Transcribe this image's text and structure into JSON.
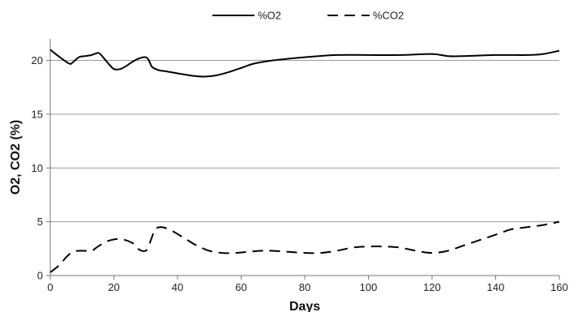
{
  "chart_data": {
    "type": "line",
    "title": "",
    "xlabel": "Days",
    "ylabel": "O2, CO2 (%)",
    "xlim": [
      0,
      160
    ],
    "ylim": [
      0,
      22
    ],
    "xticks": [
      0,
      20,
      40,
      60,
      80,
      100,
      120,
      140,
      160
    ],
    "yticks": [
      0,
      5,
      10,
      15,
      20
    ],
    "grid": "horizontal",
    "legend": "top-center",
    "series": [
      {
        "name": "%O2",
        "style": "solid",
        "color": "#000000",
        "x": [
          0,
          3,
          6,
          7,
          9,
          11,
          13,
          15,
          16,
          18,
          20,
          22,
          24,
          26,
          28,
          30,
          31,
          32,
          34,
          36,
          40,
          44,
          48,
          52,
          56,
          60,
          64,
          70,
          80,
          90,
          100,
          110,
          120,
          125,
          130,
          140,
          150,
          155,
          160
        ],
        "y": [
          21.0,
          20.3,
          19.7,
          19.8,
          20.3,
          20.4,
          20.5,
          20.7,
          20.5,
          19.8,
          19.2,
          19.2,
          19.5,
          19.9,
          20.2,
          20.3,
          20.0,
          19.4,
          19.1,
          19.0,
          18.8,
          18.6,
          18.5,
          18.6,
          18.9,
          19.3,
          19.7,
          20.0,
          20.3,
          20.5,
          20.5,
          20.5,
          20.6,
          20.4,
          20.4,
          20.5,
          20.5,
          20.6,
          20.9
        ]
      },
      {
        "name": "%CO2",
        "style": "dashed",
        "color": "#000000",
        "x": [
          0,
          3,
          5,
          7,
          9,
          11,
          13,
          15,
          18,
          22,
          26,
          28,
          30,
          31,
          32,
          33,
          35,
          38,
          42,
          46,
          50,
          54,
          58,
          62,
          66,
          70,
          75,
          80,
          85,
          90,
          95,
          100,
          105,
          110,
          115,
          120,
          125,
          130,
          135,
          140,
          145,
          150,
          155,
          160
        ],
        "y": [
          0.3,
          1.0,
          1.7,
          2.2,
          2.3,
          2.3,
          2.3,
          2.7,
          3.2,
          3.4,
          3.0,
          2.4,
          2.3,
          2.8,
          3.6,
          4.3,
          4.5,
          4.2,
          3.5,
          2.8,
          2.3,
          2.1,
          2.1,
          2.2,
          2.3,
          2.3,
          2.2,
          2.1,
          2.1,
          2.3,
          2.6,
          2.7,
          2.7,
          2.6,
          2.3,
          2.1,
          2.3,
          2.8,
          3.3,
          3.8,
          4.3,
          4.5,
          4.7,
          5.0
        ]
      }
    ]
  }
}
